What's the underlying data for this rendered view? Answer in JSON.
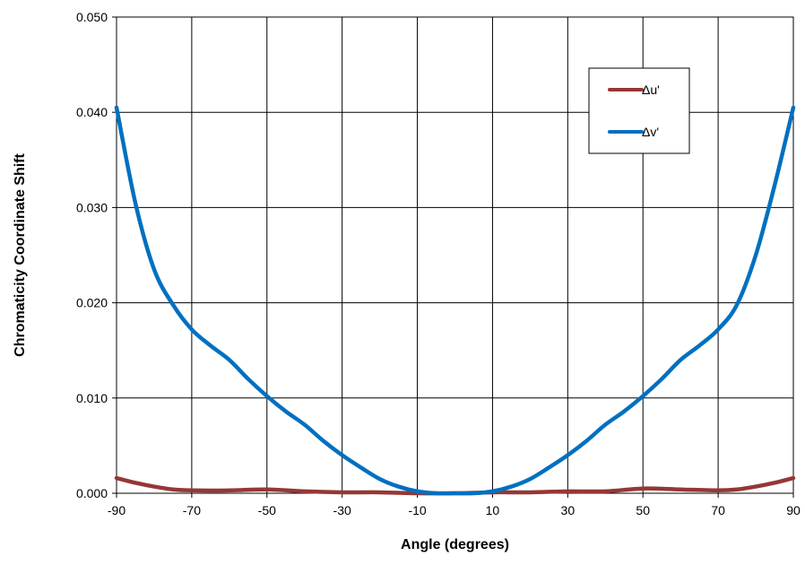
{
  "chart_data": {
    "type": "line",
    "title": "",
    "xlabel": "Angle (degrees)",
    "ylabel": "Chromaticity Coordinate Shift",
    "xlim": [
      -90,
      90
    ],
    "ylim": [
      0,
      0.05
    ],
    "x_ticks": [
      "-90",
      "-70",
      "-50",
      "-30",
      "-10",
      "10",
      "30",
      "50",
      "70",
      "90"
    ],
    "y_ticks": [
      "0.000",
      "0.010",
      "0.020",
      "0.030",
      "0.040",
      "0.050"
    ],
    "grid": true,
    "legend_position": "top-right",
    "series": [
      {
        "name": "Δu'",
        "color": "#953735",
        "x": [
          -90,
          -85,
          -80,
          -75,
          -70,
          -60,
          -50,
          -40,
          -30,
          -20,
          -10,
          0,
          10,
          20,
          30,
          40,
          50,
          60,
          70,
          75,
          80,
          85,
          90
        ],
        "y": [
          0.0016,
          0.0011,
          0.0007,
          0.0004,
          0.0003,
          0.0003,
          0.0004,
          0.0002,
          0.0001,
          0.0001,
          0.0,
          0.0,
          0.0001,
          0.0001,
          0.0002,
          0.0002,
          0.0005,
          0.0004,
          0.0003,
          0.0004,
          0.0007,
          0.0011,
          0.0016
        ]
      },
      {
        "name": "Δv'",
        "color": "#0070C0",
        "x": [
          -90,
          -85,
          -80,
          -75,
          -70,
          -65,
          -60,
          -55,
          -50,
          -45,
          -40,
          -35,
          -30,
          -25,
          -20,
          -15,
          -10,
          -5,
          0,
          5,
          10,
          15,
          20,
          25,
          30,
          35,
          40,
          45,
          50,
          55,
          60,
          65,
          70,
          75,
          80,
          85,
          90
        ],
        "y": [
          0.0405,
          0.0305,
          0.0235,
          0.0198,
          0.0172,
          0.0155,
          0.014,
          0.012,
          0.0102,
          0.0086,
          0.0072,
          0.0055,
          0.004,
          0.0027,
          0.0015,
          0.0007,
          0.0002,
          0.0,
          0.0,
          0.0,
          0.0002,
          0.0007,
          0.0015,
          0.0027,
          0.004,
          0.0055,
          0.0072,
          0.0086,
          0.0102,
          0.012,
          0.014,
          0.0155,
          0.0172,
          0.0198,
          0.025,
          0.0323,
          0.0405
        ]
      }
    ]
  }
}
